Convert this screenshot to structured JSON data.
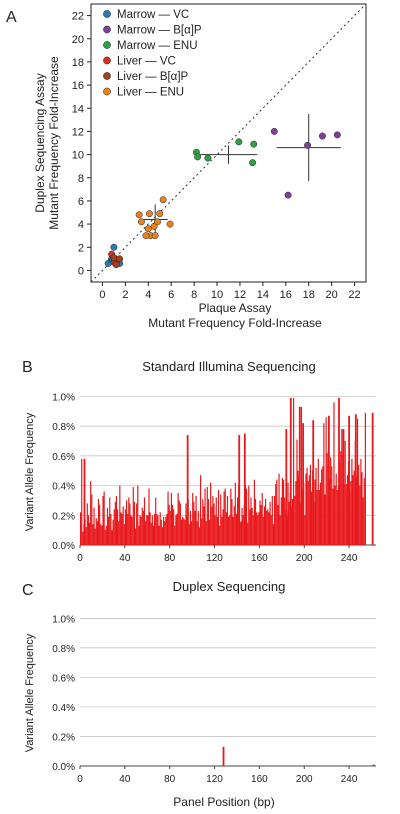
{
  "chart_data": [
    {
      "panel_label": "A",
      "type": "scatter",
      "xlabel": "Plaque Assay",
      "xlabel2": "Mutant Frequency Fold-Increase",
      "ylabel": "Duplex Sequencing Assay",
      "ylabel2": "Mutant Frequency Fold-Increase",
      "xlim": [
        -1,
        23
      ],
      "ylim": [
        -1,
        23
      ],
      "xticks": [
        "0",
        "2",
        "4",
        "6",
        "8",
        "10",
        "12",
        "14",
        "16",
        "18",
        "20",
        "22"
      ],
      "yticks": [
        "0",
        "2",
        "4",
        "6",
        "8",
        "10",
        "12",
        "14",
        "16",
        "18",
        "20",
        "22"
      ],
      "diagonal": true,
      "series": [
        {
          "name": "Marrow — VC",
          "color": "#2b7bb9",
          "points": [
            [
              0.5,
              0.6
            ],
            [
              0.8,
              1.0
            ],
            [
              1.0,
              2.0
            ],
            [
              1.2,
              0.6
            ],
            [
              1.5,
              0.6
            ],
            [
              0.9,
              0.9
            ]
          ],
          "cross": {
            "x": 1.0,
            "y": 0.95,
            "xerr": 0.5,
            "yerr": 0.6
          }
        },
        {
          "name": "Marrow — B[α]P",
          "color": "#7f3f98",
          "points": [
            [
              15.0,
              12.0
            ],
            [
              16.2,
              6.5
            ],
            [
              17.9,
              10.8
            ],
            [
              19.2,
              11.6
            ],
            [
              20.5,
              11.7
            ]
          ],
          "cross": {
            "x": 18.0,
            "y": 10.6,
            "xerr": 2.8,
            "yerr": 2.9
          }
        },
        {
          "name": "Marrow — ENU",
          "color": "#2ea043",
          "points": [
            [
              8.2,
              10.2
            ],
            [
              8.3,
              9.8
            ],
            [
              9.2,
              9.7
            ],
            [
              11.9,
              11.1
            ],
            [
              13.1,
              9.3
            ],
            [
              13.2,
              10.9
            ]
          ],
          "cross": {
            "x": 11.0,
            "y": 10.0,
            "xerr": 2.5,
            "yerr": 0.8
          }
        },
        {
          "name": "Liver — VC",
          "color": "#d7301f",
          "points": [
            [
              0.8,
              1.4
            ],
            [
              1.0,
              0.7
            ],
            [
              1.3,
              0.9
            ],
            [
              1.1,
              0.8
            ]
          ],
          "cross": {
            "x": 1.0,
            "y": 0.9,
            "xerr": 0.3,
            "yerr": 0.3
          }
        },
        {
          "name": "Liver — B[α]P",
          "color": "#a0421d",
          "points": [
            [
              1.0,
              1.1
            ],
            [
              1.2,
              0.5
            ],
            [
              1.5,
              1.0
            ]
          ],
          "cross": null
        },
        {
          "name": "Liver — ENU",
          "color": "#e8821c",
          "points": [
            [
              3.2,
              4.8
            ],
            [
              3.4,
              4.2
            ],
            [
              4.1,
              4.9
            ],
            [
              4.2,
              3.0
            ],
            [
              4.5,
              3.8
            ],
            [
              4.6,
              3.0
            ],
            [
              4.8,
              4.2
            ],
            [
              5.0,
              4.9
            ],
            [
              5.3,
              6.1
            ],
            [
              5.9,
              4.0
            ],
            [
              3.8,
              3.0
            ],
            [
              4.0,
              3.6
            ]
          ],
          "cross": {
            "x": 4.6,
            "y": 4.4,
            "xerr": 1.1,
            "yerr": 1.3
          }
        }
      ]
    },
    {
      "panel_label": "B",
      "type": "bar",
      "title": "Standard Illumina Sequencing",
      "ylabel": "Variant Allele Frequency",
      "xlabel": "",
      "xlim": [
        0,
        264
      ],
      "ylim": [
        0,
        1.05
      ],
      "yticks": [
        "0.0%",
        "0.2%",
        "0.4%",
        "0.6%",
        "0.8%",
        "1.0%"
      ],
      "xticks": [
        "0",
        "40",
        "80",
        "120",
        "160",
        "200",
        "240"
      ],
      "color": "#e8191c",
      "values": [
        0.22,
        0.58,
        0.09,
        0.14,
        0.17,
        0.12,
        0.28,
        0.2,
        0.15,
        0.43,
        0.34,
        0.14,
        0.25,
        0.11,
        0.18,
        0.16,
        0.31,
        0.27,
        0.14,
        0.13,
        0.33,
        0.36,
        0.1,
        0.13,
        0.25,
        0.19,
        0.32,
        0.21,
        0.1,
        0.17,
        0.24,
        0.29,
        0.33,
        0.24,
        0.16,
        0.4,
        0.22,
        0.21,
        0.26,
        0.14,
        0.24,
        0.3,
        0.21,
        0.32,
        0.28,
        0.2,
        0.19,
        0.39,
        0.29,
        0.11,
        0.28,
        0.4,
        0.13,
        0.2,
        0.19,
        0.25,
        0.23,
        0.32,
        0.16,
        0.2,
        0.2,
        0.38,
        0.22,
        0.15,
        0.2,
        0.13,
        0.21,
        0.32,
        0.21,
        0.2,
        0.13,
        0.22,
        0.17,
        0.12,
        0.19,
        0.16,
        0.19,
        0.21,
        0.36,
        0.27,
        0.23,
        0.35,
        0.27,
        0.24,
        0.13,
        0.2,
        0.21,
        0.35,
        0.3,
        0.28,
        0.17,
        0.19,
        0.18,
        0.17,
        0.28,
        0.2,
        0.31,
        0.14,
        0.23,
        0.16,
        0.35,
        0.29,
        0.23,
        0.33,
        0.16,
        0.23,
        0.12,
        0.47,
        0.18,
        0.31,
        0.26,
        0.38,
        0.16,
        0.39,
        0.31,
        0.17,
        0.42,
        0.26,
        0.33,
        0.28,
        0.2,
        0.32,
        0.19,
        0.37,
        0.13,
        0.34,
        0.19,
        0.24,
        0.36,
        0.38,
        0.22,
        0.33,
        0.19,
        0.2,
        0.38,
        0.31,
        0.19,
        0.26,
        0.42,
        0.21,
        0.32,
        0.41,
        0.15,
        0.16,
        0.25,
        0.2,
        0.27,
        0.4,
        0.38,
        0.15,
        0.4,
        0.24,
        0.32,
        0.25,
        0.2,
        0.44,
        0.31,
        0.22,
        0.2,
        0.22,
        0.3,
        0.27,
        0.35,
        0.19,
        0.26,
        0.31,
        0.23,
        0.24,
        0.22,
        0.29,
        0.2,
        0.33,
        0.14,
        0.33,
        0.41,
        0.44,
        0.27,
        0.48,
        0.2,
        0.32,
        0.45,
        0.44,
        0.32,
        0.24,
        0.2,
        0.42,
        0.29,
        0.35,
        0.26,
        0.31,
        0.99,
        0.33,
        0.43,
        0.71,
        0.5,
        0.47,
        0.28,
        0.93,
        0.38,
        0.42,
        0.2,
        0.48,
        0.52,
        0.43,
        0.47,
        0.54,
        0.36,
        0.5,
        0.29,
        0.44,
        0.52,
        0.37,
        0.58,
        0.37,
        0.42,
        0.51,
        0.53,
        0.82,
        0.34,
        0.86,
        0.62,
        0.54,
        0.45,
        0.59,
        0.53,
        0.38,
        0.96,
        0.4,
        0.48,
        0.37,
        0.4,
        0.56,
        0.63,
        0.78,
        0.61,
        0.41,
        0.7,
        0.41,
        0.47,
        0.56,
        0.36,
        0.43,
        0.58,
        0.47,
        0.5,
        0.7,
        0.46,
        0.85,
        0.54,
        0.4,
        0.58,
        0.49,
        0.32,
        0.45,
        0.89
      ],
      "peaks": [
        [
          4,
          0.58
        ],
        [
          96,
          0.74
        ],
        [
          142,
          0.74
        ],
        [
          147,
          0.75
        ],
        [
          184,
          0.78
        ],
        [
          188,
          0.99
        ],
        [
          196,
          0.93
        ],
        [
          199,
          0.82
        ],
        [
          208,
          0.84
        ],
        [
          222,
          0.87
        ],
        [
          231,
          0.99
        ],
        [
          235,
          0.78
        ],
        [
          240,
          0.87
        ],
        [
          246,
          0.88
        ],
        [
          261,
          0.89
        ]
      ]
    },
    {
      "panel_label": "C",
      "type": "bar",
      "title": "Duplex Sequencing",
      "ylabel": "Variant Allele Frequency",
      "xlabel": "Panel Position (bp)",
      "xlim": [
        0,
        264
      ],
      "ylim": [
        0,
        1.05
      ],
      "yticks": [
        "0.0%",
        "0.2%",
        "0.4%",
        "0.6%",
        "0.8%",
        "1.0%"
      ],
      "xticks": [
        "0",
        "40",
        "80",
        "120",
        "160",
        "200",
        "240"
      ],
      "color": "#e8191c",
      "points": [
        [
          128,
          0.13
        ],
        [
          262,
          0.01
        ]
      ]
    }
  ]
}
